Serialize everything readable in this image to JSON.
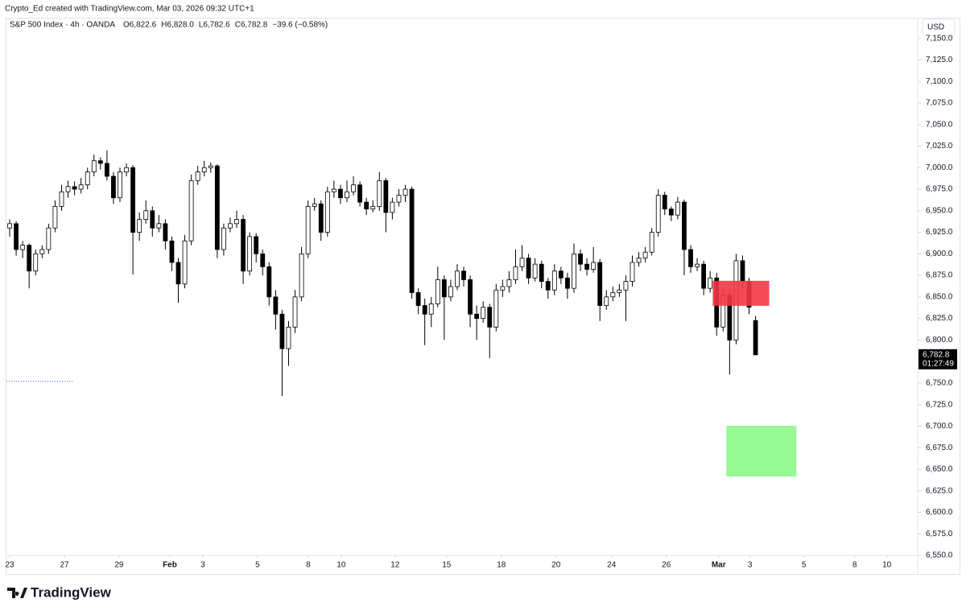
{
  "header": {
    "attribution": "Crypto_Ed created with TradingView.com, Mar 03, 2026 09:32 UTC+1"
  },
  "footer": {
    "brand": "TradingView"
  },
  "chart_data": {
    "type": "candlestick",
    "legend": {
      "title": "S&P 500 Index · 4h · OANDA",
      "fields": [
        {
          "key": "O",
          "value": "6,822.6"
        },
        {
          "key": "H",
          "value": "6,828.0"
        },
        {
          "key": "L",
          "value": "6,782.6"
        },
        {
          "key": "C",
          "value": "6,782.8"
        }
      ],
      "change": "−39.6 (−0.58%)"
    },
    "currency": "USD",
    "up_color": "#ffffff",
    "down_color": "#000000",
    "border_color": "#000000",
    "xlim": [
      -0.5,
      140
    ],
    "xticks": [
      {
        "value": 0,
        "label": "23"
      },
      {
        "value": 8.44,
        "label": "27"
      },
      {
        "value": 16.87,
        "label": "29"
      },
      {
        "value": 24.69,
        "label": "Feb"
      },
      {
        "value": 29.78,
        "label": "3"
      },
      {
        "value": 38.21,
        "label": "5"
      },
      {
        "value": 46.03,
        "label": "8"
      },
      {
        "value": 51.12,
        "label": "10"
      },
      {
        "value": 59.43,
        "label": "12"
      },
      {
        "value": 67.37,
        "label": "15"
      },
      {
        "value": 75.81,
        "label": "18"
      },
      {
        "value": 84.24,
        "label": "20"
      },
      {
        "value": 92.8,
        "label": "24"
      },
      {
        "value": 101.24,
        "label": "26"
      },
      {
        "value": 109.31,
        "label": "Mar"
      },
      {
        "value": 114.14,
        "label": "3"
      },
      {
        "value": 122.46,
        "label": "5"
      },
      {
        "value": 130.27,
        "label": "8"
      },
      {
        "value": 135.24,
        "label": "10"
      }
    ],
    "ylim": [
      6550,
      7174
    ],
    "yticks": [
      {
        "value": 6550,
        "label": "6,550.0"
      },
      {
        "value": 6575,
        "label": "6,575.0"
      },
      {
        "value": 6600,
        "label": "6,600.0"
      },
      {
        "value": 6625,
        "label": "6,625.0"
      },
      {
        "value": 6650,
        "label": "6,650.0"
      },
      {
        "value": 6675,
        "label": "6,675.0"
      },
      {
        "value": 6700,
        "label": "6,700.0"
      },
      {
        "value": 6725,
        "label": "6,725.0"
      },
      {
        "value": 6750,
        "label": "6,750.0"
      },
      {
        "value": 6775,
        "label": "6,775.0"
      },
      {
        "value": 6800,
        "label": "6,800.0"
      },
      {
        "value": 6825,
        "label": "6,825.0"
      },
      {
        "value": 6850,
        "label": "6,850.0"
      },
      {
        "value": 6875,
        "label": "6,875.0"
      },
      {
        "value": 6900,
        "label": "6,900.0"
      },
      {
        "value": 6925,
        "label": "6,925.0"
      },
      {
        "value": 6950,
        "label": "6,950.0"
      },
      {
        "value": 6975,
        "label": "6,975.0"
      },
      {
        "value": 7000,
        "label": "7,000.0"
      },
      {
        "value": 7025,
        "label": "7,025.0"
      },
      {
        "value": 7050,
        "label": "7,050.0"
      },
      {
        "value": 7075,
        "label": "7,075.0"
      },
      {
        "value": 7100,
        "label": "7,100.0"
      },
      {
        "value": 7125,
        "label": "7,125.0"
      },
      {
        "value": 7150,
        "label": "7,150.0"
      }
    ],
    "ohlc": [
      [
        6930,
        6940,
        6920,
        6935
      ],
      [
        6935,
        6938,
        6898,
        6905
      ],
      [
        6905,
        6915,
        6895,
        6910
      ],
      [
        6910,
        6912,
        6860,
        6880
      ],
      [
        6880,
        6905,
        6875,
        6900
      ],
      [
        6900,
        6910,
        6895,
        6905
      ],
      [
        6905,
        6935,
        6900,
        6930
      ],
      [
        6930,
        6962,
        6925,
        6955
      ],
      [
        6955,
        6980,
        6950,
        6972
      ],
      [
        6972,
        6985,
        6965,
        6978
      ],
      [
        6978,
        6984,
        6968,
        6975
      ],
      [
        6975,
        6988,
        6970,
        6980
      ],
      [
        6980,
        7000,
        6975,
        6995
      ],
      [
        6995,
        7015,
        6990,
        7008
      ],
      [
        7008,
        7012,
        6998,
        7005
      ],
      [
        7005,
        7020,
        6985,
        6990
      ],
      [
        6990,
        6995,
        6958,
        6965
      ],
      [
        6965,
        7000,
        6960,
        6995
      ],
      [
        6995,
        7005,
        6990,
        7000
      ],
      [
        7000,
        7003,
        6876,
        6925
      ],
      [
        6925,
        6948,
        6915,
        6940
      ],
      [
        6940,
        6962,
        6935,
        6950
      ],
      [
        6950,
        6955,
        6920,
        6930
      ],
      [
        6930,
        6945,
        6925,
        6935
      ],
      [
        6935,
        6940,
        6905,
        6915
      ],
      [
        6915,
        6920,
        6880,
        6890
      ],
      [
        6890,
        6895,
        6843,
        6865
      ],
      [
        6865,
        6922,
        6860,
        6915
      ],
      [
        6915,
        6992,
        6910,
        6985
      ],
      [
        6985,
        7002,
        6980,
        6995
      ],
      [
        6995,
        7008,
        6990,
        7000
      ],
      [
        7000,
        7006,
        6994,
        7002
      ],
      [
        7002,
        7004,
        6895,
        6905
      ],
      [
        6905,
        6935,
        6898,
        6930
      ],
      [
        6930,
        6942,
        6925,
        6935
      ],
      [
        6935,
        6950,
        6930,
        6940
      ],
      [
        6940,
        6945,
        6865,
        6880
      ],
      [
        6880,
        6925,
        6875,
        6920
      ],
      [
        6920,
        6924,
        6890,
        6900
      ],
      [
        6900,
        6905,
        6875,
        6885
      ],
      [
        6885,
        6890,
        6840,
        6850
      ],
      [
        6850,
        6858,
        6812,
        6830
      ],
      [
        6830,
        6835,
        6735,
        6790
      ],
      [
        6790,
        6822,
        6770,
        6815
      ],
      [
        6815,
        6858,
        6808,
        6850
      ],
      [
        6850,
        6908,
        6845,
        6900
      ],
      [
        6900,
        6962,
        6895,
        6955
      ],
      [
        6955,
        6965,
        6950,
        6958
      ],
      [
        6958,
        6962,
        6915,
        6925
      ],
      [
        6925,
        6978,
        6920,
        6972
      ],
      [
        6972,
        6985,
        6965,
        6975
      ],
      [
        6975,
        6980,
        6958,
        6965
      ],
      [
        6965,
        6985,
        6960,
        6972
      ],
      [
        6972,
        6990,
        6968,
        6980
      ],
      [
        6980,
        6984,
        6955,
        6960
      ],
      [
        6960,
        6965,
        6945,
        6952
      ],
      [
        6952,
        6962,
        6948,
        6955
      ],
      [
        6955,
        6995,
        6950,
        6985
      ],
      [
        6985,
        6988,
        6925,
        6948
      ],
      [
        6948,
        6965,
        6940,
        6960
      ],
      [
        6960,
        6975,
        6955,
        6968
      ],
      [
        6968,
        6980,
        6960,
        6975
      ],
      [
        6975,
        6978,
        6848,
        6855
      ],
      [
        6855,
        6860,
        6830,
        6840
      ],
      [
        6840,
        6848,
        6794,
        6830
      ],
      [
        6830,
        6850,
        6815,
        6842
      ],
      [
        6842,
        6885,
        6838,
        6870
      ],
      [
        6870,
        6875,
        6800,
        6850
      ],
      [
        6850,
        6870,
        6845,
        6862
      ],
      [
        6862,
        6888,
        6858,
        6880
      ],
      [
        6880,
        6885,
        6862,
        6870
      ],
      [
        6870,
        6875,
        6815,
        6830
      ],
      [
        6830,
        6840,
        6800,
        6825
      ],
      [
        6825,
        6845,
        6820,
        6838
      ],
      [
        6838,
        6842,
        6779,
        6815
      ],
      [
        6815,
        6865,
        6810,
        6858
      ],
      [
        6858,
        6870,
        6850,
        6862
      ],
      [
        6862,
        6880,
        6855,
        6870
      ],
      [
        6870,
        6905,
        6865,
        6885
      ],
      [
        6885,
        6910,
        6880,
        6895
      ],
      [
        6895,
        6900,
        6865,
        6872
      ],
      [
        6872,
        6895,
        6868,
        6888
      ],
      [
        6888,
        6892,
        6860,
        6868
      ],
      [
        6868,
        6872,
        6848,
        6858
      ],
      [
        6858,
        6888,
        6852,
        6880
      ],
      [
        6880,
        6885,
        6865,
        6872
      ],
      [
        6872,
        6878,
        6848,
        6860
      ],
      [
        6860,
        6912,
        6855,
        6900
      ],
      [
        6900,
        6905,
        6880,
        6888
      ],
      [
        6888,
        6895,
        6875,
        6882
      ],
      [
        6882,
        6908,
        6878,
        6890
      ],
      [
        6890,
        6894,
        6822,
        6840
      ],
      [
        6840,
        6858,
        6835,
        6850
      ],
      [
        6850,
        6862,
        6845,
        6855
      ],
      [
        6855,
        6865,
        6850,
        6858
      ],
      [
        6858,
        6875,
        6822,
        6868
      ],
      [
        6868,
        6898,
        6862,
        6890
      ],
      [
        6890,
        6902,
        6885,
        6895
      ],
      [
        6895,
        6908,
        6890,
        6902
      ],
      [
        6902,
        6930,
        6898,
        6925
      ],
      [
        6925,
        6975,
        6920,
        6968
      ],
      [
        6968,
        6972,
        6945,
        6952
      ],
      [
        6952,
        6955,
        6938,
        6945
      ],
      [
        6945,
        6966,
        6940,
        6960
      ],
      [
        6960,
        6963,
        6875,
        6905
      ],
      [
        6905,
        6910,
        6878,
        6885
      ],
      [
        6885,
        6895,
        6880,
        6888
      ],
      [
        6888,
        6892,
        6852,
        6860
      ],
      [
        6860,
        6880,
        6855,
        6872
      ],
      [
        6872,
        6878,
        6805,
        6815
      ],
      [
        6815,
        6858,
        6810,
        6852
      ],
      [
        6852,
        6856,
        6760,
        6800
      ],
      [
        6800,
        6900,
        6795,
        6892
      ],
      [
        6892,
        6898,
        6860,
        6868
      ],
      [
        6868,
        6872,
        6830,
        6838
      ],
      [
        6822.6,
        6828.0,
        6782.6,
        6782.8
      ]
    ],
    "zones": [
      {
        "color": "#f23645",
        "from": 108.4,
        "to": 117.1,
        "top": 6868.7,
        "bottom": 6839.7
      },
      {
        "color": "#8cf98a",
        "from": 110.5,
        "to": 121.3,
        "top": 6700.5,
        "bottom": 6641.6
      }
    ],
    "levels": [
      {
        "color": "#2962ff",
        "value": 6752,
        "from": -0.5,
        "to": 9.7
      }
    ],
    "price_label": {
      "value": 6782.8,
      "label": "6,782.8"
    },
    "countdown": "01:27:49"
  }
}
